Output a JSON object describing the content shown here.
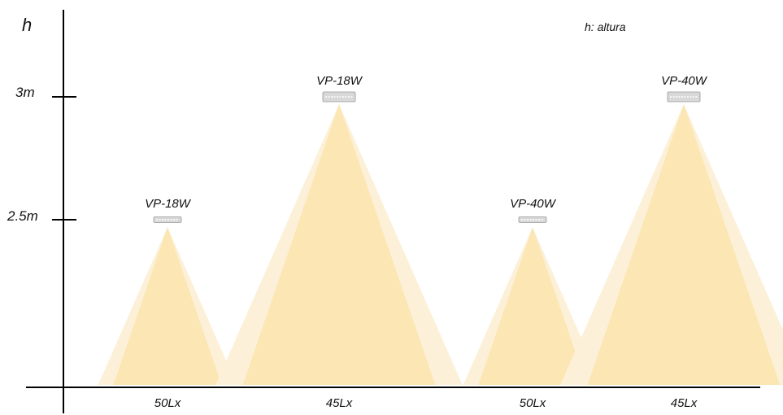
{
  "axis": {
    "y_symbol": "h",
    "ticks": [
      {
        "label": "3m",
        "value": 3
      },
      {
        "label": "2.5m",
        "value": 2.5
      }
    ]
  },
  "legend": "h: altura",
  "colors": {
    "beam_outer": "#FCF1D8",
    "beam_inner": "#FBE6B4",
    "fixture": "#D8D8D8",
    "axis": "#000000"
  },
  "fixtures": [
    {
      "model": "VP-18W",
      "mount_height_m": 2.5,
      "illuminance": "50Lx"
    },
    {
      "model": "VP-18W",
      "mount_height_m": 3,
      "illuminance": "45Lx"
    },
    {
      "model": "VP-40W",
      "mount_height_m": 2.5,
      "illuminance": "50Lx"
    },
    {
      "model": "VP-40W",
      "mount_height_m": 3,
      "illuminance": "45Lx"
    }
  ]
}
